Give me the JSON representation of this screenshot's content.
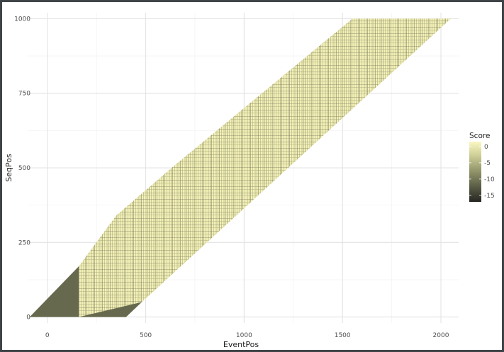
{
  "chart_data": {
    "type": "heatmap",
    "title": "",
    "xlabel": "EventPos",
    "ylabel": "SeqPos",
    "xlim": [
      -100,
      2090
    ],
    "ylim": [
      -20,
      1020
    ],
    "x_ticks": [
      0,
      500,
      1000,
      1500,
      2000
    ],
    "x_tick_labels": [
      "0",
      "500",
      "1000",
      "1500",
      "2000"
    ],
    "y_ticks": [
      0,
      250,
      500,
      750,
      1000
    ],
    "y_tick_labels": [
      "0",
      "250",
      "500",
      "750",
      "1000"
    ],
    "grid": true,
    "legend": {
      "title": "Score",
      "placement": "right",
      "breaks": [
        0,
        -5,
        -10,
        -15
      ],
      "labels": [
        "0",
        "-5",
        "-10",
        "-15"
      ],
      "range": [
        -17,
        1.5
      ],
      "colors": [
        "#262622",
        "#5a5c45",
        "#9a9d70",
        "#d4d49c",
        "#fbf7c2"
      ]
    },
    "band": {
      "description_values": "Band of computed scores along SeqPos vs EventPos",
      "lower_edge": [
        [
          160,
          0
        ],
        [
          400,
          0
        ],
        [
          480,
          50
        ],
        [
          2050,
          1000
        ]
      ],
      "upper_edge": [
        [
          160,
          170
        ],
        [
          350,
          340
        ],
        [
          650,
          510
        ],
        [
          1550,
          1000
        ]
      ],
      "low_score_regions": [
        {
          "points": [
            [
              -90,
              0
            ],
            [
              160,
              0
            ],
            [
              160,
              170
            ]
          ],
          "score": -11
        },
        {
          "points": [
            [
              160,
              0
            ],
            [
              400,
              0
            ],
            [
              480,
              50
            ]
          ],
          "score": -11
        }
      ],
      "typical_score": 0
    }
  }
}
